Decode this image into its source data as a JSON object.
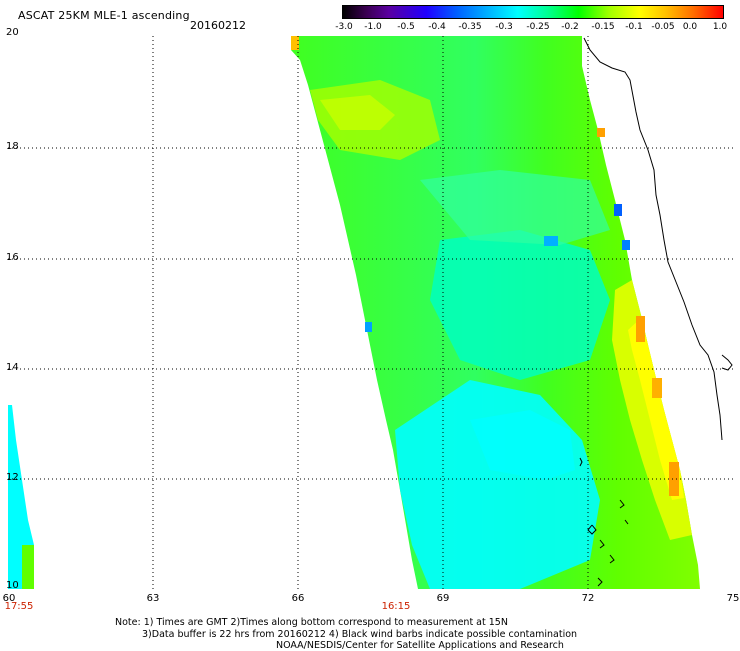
{
  "header": {
    "title": "ASCAT 25KM MLE-1 ascending",
    "date": "20160212"
  },
  "colorbar": {
    "labels": [
      "-3.0",
      "-1.0",
      "-0.5",
      "-0.4",
      "-0.35",
      "-0.3",
      "-0.25",
      "-0.2",
      "-0.15",
      "-0.1",
      "-0.05",
      "0.0",
      "1.0"
    ]
  },
  "map": {
    "y_labels": [
      "20",
      "18",
      "16",
      "14",
      "12",
      "10"
    ],
    "x_labels": [
      "60",
      "63",
      "66",
      "69",
      "72",
      "75"
    ],
    "time_labels": [
      "17:55",
      "16:15"
    ],
    "colors": {
      "cyan": "#00ffff",
      "green": "#40ff00",
      "yellowgreen": "#a0ff00",
      "yellow": "#ffff00",
      "orange": "#ff9900",
      "blue": "#0066ff"
    }
  },
  "footer": {
    "note_line1": "Note: 1) Times are GMT 2)Times along bottom correspond to measurement at 15N",
    "note_line2": "3)Data buffer is 22 hrs from 20160212 4) Black wind barbs indicate possible contamination",
    "note_line3": "NOAA/NESDIS/Center for Satellite Applications and Research"
  }
}
